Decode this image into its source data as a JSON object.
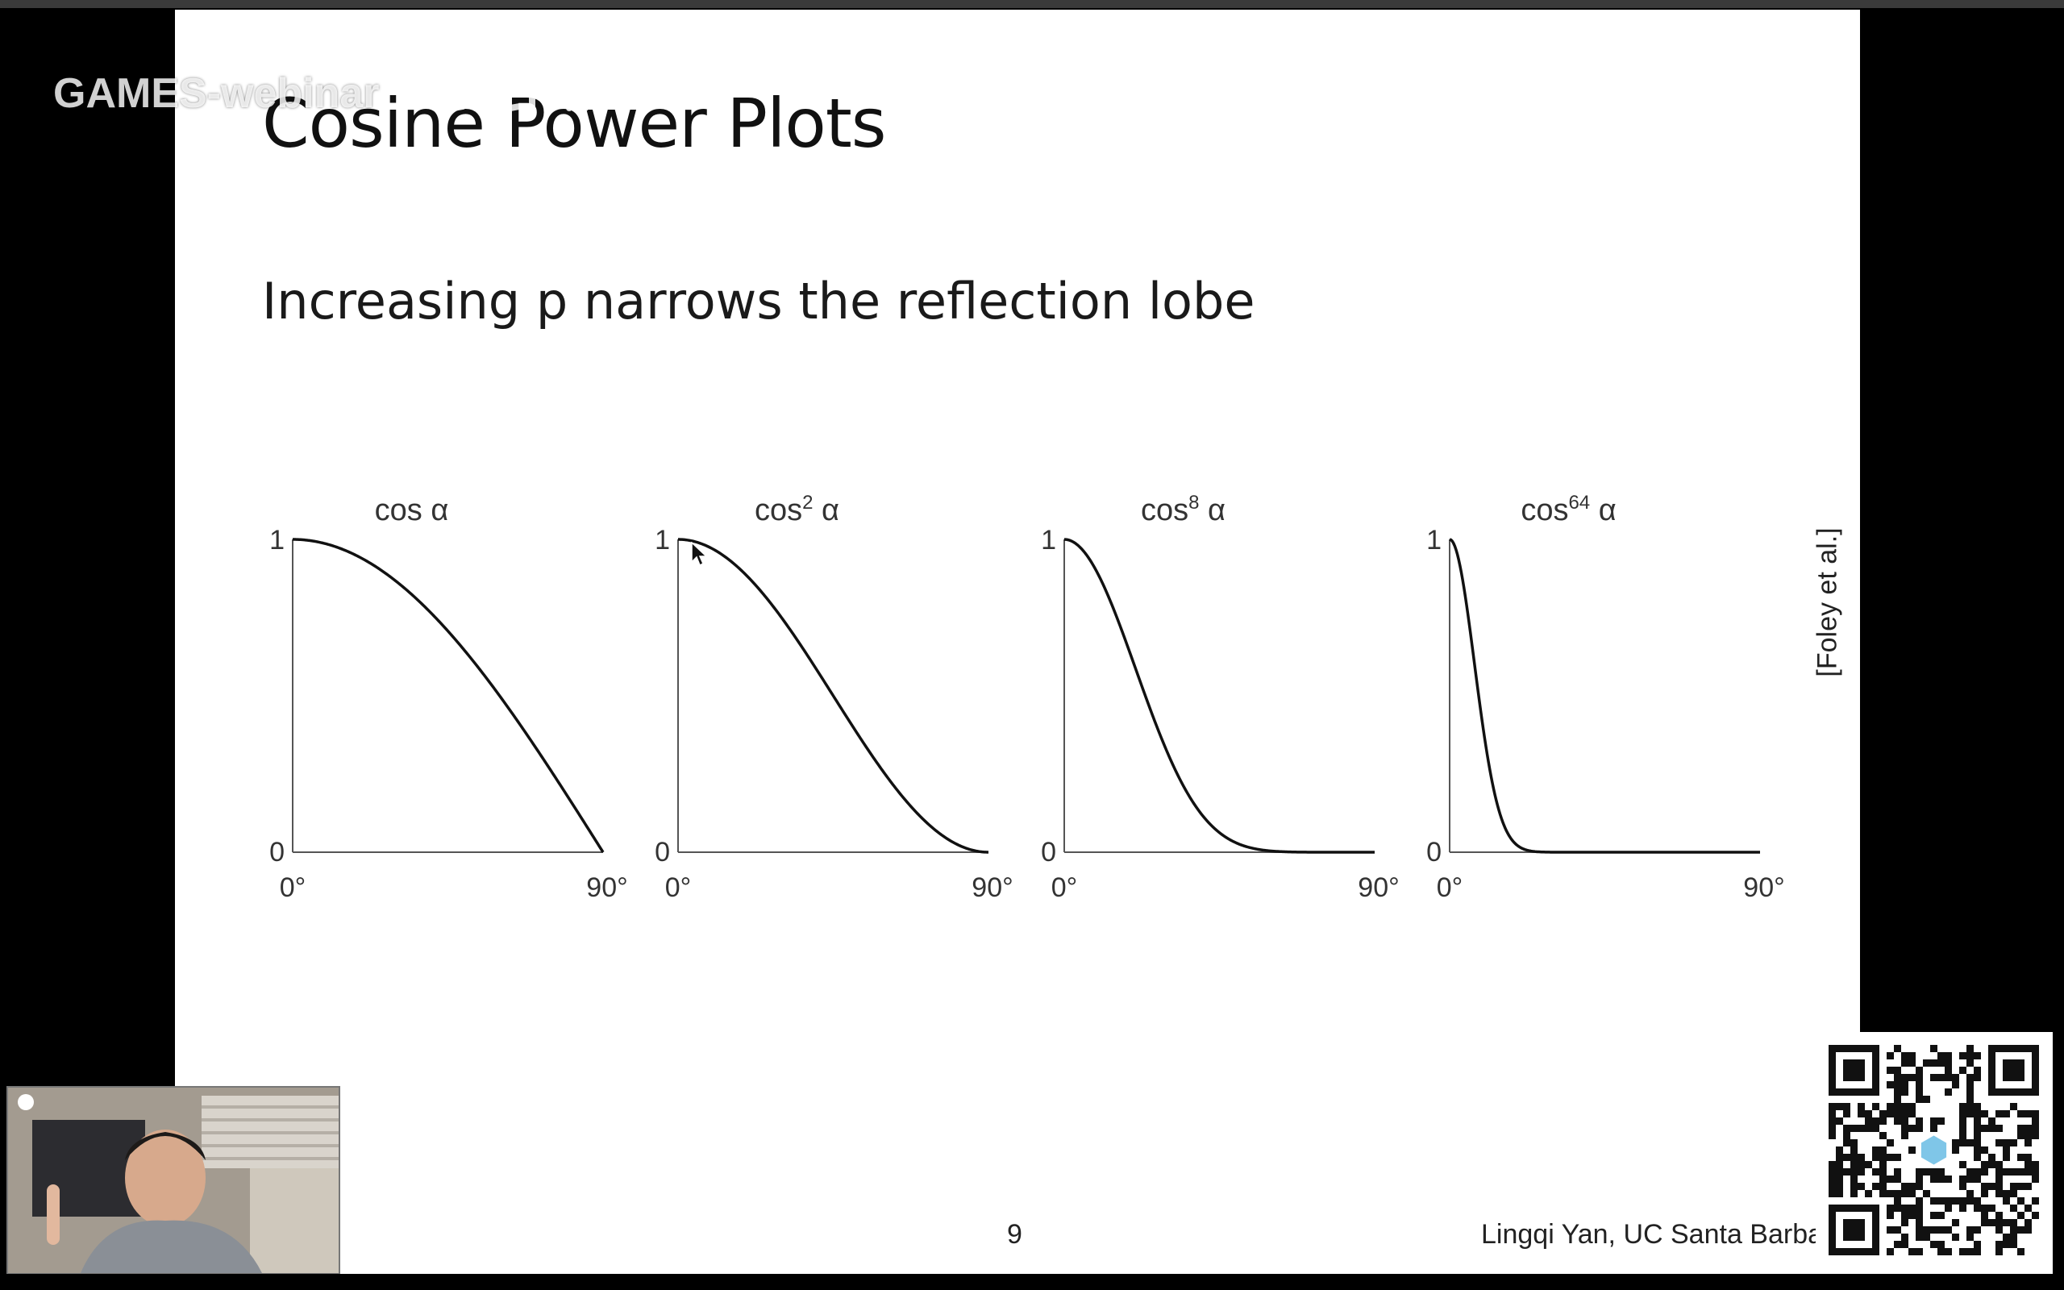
{
  "slide": {
    "title": "Cosine Power Plots",
    "subtitle": "Increasing p narrows the reflection lobe",
    "citation": "[Foley et al.]",
    "page_number": "9",
    "author": "Lingqi Yan, UC Santa Barbar"
  },
  "overlay": {
    "watermark": "GAMES-webinar",
    "platform_logo": "bilibili-logo",
    "webcam_icon": "presenter-video",
    "qr_icon": "qr-code-icon"
  },
  "colors": {
    "slide_background": "#ffffff",
    "curve": "#111111",
    "axis": "#555555"
  },
  "chart_data": [
    {
      "type": "line",
      "title_base": "cos",
      "title_exponent": "",
      "title_symbol": "α",
      "exponent": 1,
      "x": [
        0,
        90
      ],
      "x_tick_labels": [
        "0°",
        "90°"
      ],
      "y_tick_labels": [
        "0",
        "1"
      ],
      "xlim": [
        0,
        90
      ],
      "ylim": [
        0,
        1
      ]
    },
    {
      "type": "line",
      "title_base": "cos",
      "title_exponent": "2",
      "title_symbol": "α",
      "exponent": 2,
      "x": [
        0,
        90
      ],
      "x_tick_labels": [
        "0°",
        "90°"
      ],
      "y_tick_labels": [
        "0",
        "1"
      ],
      "xlim": [
        0,
        90
      ],
      "ylim": [
        0,
        1
      ]
    },
    {
      "type": "line",
      "title_base": "cos",
      "title_exponent": "8",
      "title_symbol": "α",
      "exponent": 8,
      "x": [
        0,
        90
      ],
      "x_tick_labels": [
        "0°",
        "90°"
      ],
      "y_tick_labels": [
        "0",
        "1"
      ],
      "xlim": [
        0,
        90
      ],
      "ylim": [
        0,
        1
      ]
    },
    {
      "type": "line",
      "title_base": "cos",
      "title_exponent": "64",
      "title_symbol": "α",
      "exponent": 64,
      "x": [
        0,
        90
      ],
      "x_tick_labels": [
        "0°",
        "90°"
      ],
      "y_tick_labels": [
        "0",
        "1"
      ],
      "xlim": [
        0,
        90
      ],
      "ylim": [
        0,
        1
      ]
    }
  ]
}
